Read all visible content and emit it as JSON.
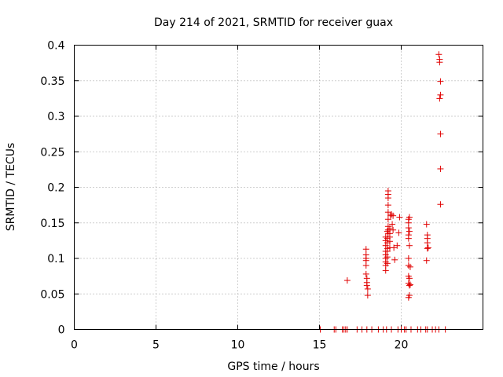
{
  "chart_data": {
    "type": "scatter",
    "title": "Day 214 of 2021, SRMTID for receiver guax",
    "xlabel": "GPS time / hours",
    "ylabel": "SRMTID / TECUs",
    "xlim": [
      0,
      25
    ],
    "ylim": [
      0,
      0.4
    ],
    "x_ticks": [
      0,
      5,
      10,
      15,
      20
    ],
    "x_tick_labels": [
      "0",
      "5",
      "10",
      "15",
      "20"
    ],
    "y_ticks": [
      0,
      0.05,
      0.1,
      0.15,
      0.2,
      0.25,
      0.3,
      0.35,
      0.4
    ],
    "y_tick_labels": [
      "0",
      "0.05",
      "0.1",
      "0.15",
      "0.2",
      "0.25",
      "0.3",
      "0.35",
      "0.4"
    ],
    "grid": true,
    "marker": "+",
    "color": "#e00000",
    "series": [
      {
        "name": "SRMTID",
        "points": [
          [
            15.05,
            0
          ],
          [
            15.9,
            0
          ],
          [
            16.0,
            0
          ],
          [
            16.4,
            0
          ],
          [
            16.5,
            0
          ],
          [
            16.6,
            0
          ],
          [
            16.7,
            0
          ],
          [
            17.3,
            0
          ],
          [
            17.6,
            0
          ],
          [
            17.9,
            0
          ],
          [
            18.2,
            0
          ],
          [
            18.6,
            0
          ],
          [
            18.9,
            0
          ],
          [
            19.1,
            0
          ],
          [
            19.4,
            0
          ],
          [
            19.8,
            0
          ],
          [
            20.0,
            0
          ],
          [
            20.2,
            0
          ],
          [
            20.3,
            0
          ],
          [
            20.6,
            0
          ],
          [
            21.0,
            0
          ],
          [
            21.2,
            0
          ],
          [
            21.5,
            0
          ],
          [
            21.6,
            0
          ],
          [
            21.9,
            0
          ],
          [
            22.1,
            0
          ],
          [
            22.3,
            0
          ],
          [
            22.7,
            0
          ],
          [
            16.7,
            0.069
          ],
          [
            17.85,
            0.113
          ],
          [
            17.85,
            0.105
          ],
          [
            17.85,
            0.1
          ],
          [
            17.85,
            0.097
          ],
          [
            17.85,
            0.09
          ],
          [
            17.85,
            0.078
          ],
          [
            17.9,
            0.072
          ],
          [
            17.9,
            0.066
          ],
          [
            17.9,
            0.062
          ],
          [
            17.95,
            0.057
          ],
          [
            17.95,
            0.048
          ],
          [
            19.05,
            0.13
          ],
          [
            19.05,
            0.125
          ],
          [
            19.05,
            0.118
          ],
          [
            19.05,
            0.11
          ],
          [
            19.05,
            0.105
          ],
          [
            19.05,
            0.1
          ],
          [
            19.05,
            0.095
          ],
          [
            19.05,
            0.09
          ],
          [
            19.05,
            0.083
          ],
          [
            19.15,
            0.138
          ],
          [
            19.15,
            0.128
          ],
          [
            19.15,
            0.122
          ],
          [
            19.15,
            0.114
          ],
          [
            19.15,
            0.11
          ],
          [
            19.15,
            0.102
          ],
          [
            19.15,
            0.093
          ],
          [
            19.2,
            0.195
          ],
          [
            19.2,
            0.19
          ],
          [
            19.2,
            0.185
          ],
          [
            19.2,
            0.175
          ],
          [
            19.2,
            0.165
          ],
          [
            19.2,
            0.155
          ],
          [
            19.2,
            0.145
          ],
          [
            19.2,
            0.14
          ],
          [
            19.2,
            0.135
          ],
          [
            19.3,
            0.142
          ],
          [
            19.3,
            0.135
          ],
          [
            19.3,
            0.13
          ],
          [
            19.3,
            0.124
          ],
          [
            19.3,
            0.115
          ],
          [
            19.35,
            0.16
          ],
          [
            19.4,
            0.162
          ],
          [
            19.45,
            0.148
          ],
          [
            19.5,
            0.16
          ],
          [
            19.5,
            0.14
          ],
          [
            19.55,
            0.115
          ],
          [
            19.6,
            0.098
          ],
          [
            19.75,
            0.118
          ],
          [
            19.85,
            0.136
          ],
          [
            19.9,
            0.158
          ],
          [
            20.45,
            0.155
          ],
          [
            20.45,
            0.15
          ],
          [
            20.45,
            0.143
          ],
          [
            20.45,
            0.133
          ],
          [
            20.45,
            0.128
          ],
          [
            20.45,
            0.1
          ],
          [
            20.45,
            0.09
          ],
          [
            20.45,
            0.075
          ],
          [
            20.45,
            0.065
          ],
          [
            20.45,
            0.045
          ],
          [
            20.5,
            0.158
          ],
          [
            20.5,
            0.138
          ],
          [
            20.5,
            0.118
          ],
          [
            20.5,
            0.072
          ],
          [
            20.5,
            0.062
          ],
          [
            20.5,
            0.048
          ],
          [
            20.55,
            0.088
          ],
          [
            20.55,
            0.063
          ],
          [
            21.55,
            0.148
          ],
          [
            21.6,
            0.133
          ],
          [
            21.6,
            0.128
          ],
          [
            21.6,
            0.122
          ],
          [
            21.65,
            0.115
          ],
          [
            21.6,
            0.114
          ],
          [
            21.55,
            0.097
          ],
          [
            22.3,
            0.387
          ],
          [
            22.35,
            0.38
          ],
          [
            22.35,
            0.376
          ],
          [
            22.4,
            0.349
          ],
          [
            22.4,
            0.33
          ],
          [
            22.35,
            0.325
          ],
          [
            22.4,
            0.275
          ],
          [
            22.4,
            0.226
          ],
          [
            22.4,
            0.176
          ]
        ]
      }
    ]
  }
}
